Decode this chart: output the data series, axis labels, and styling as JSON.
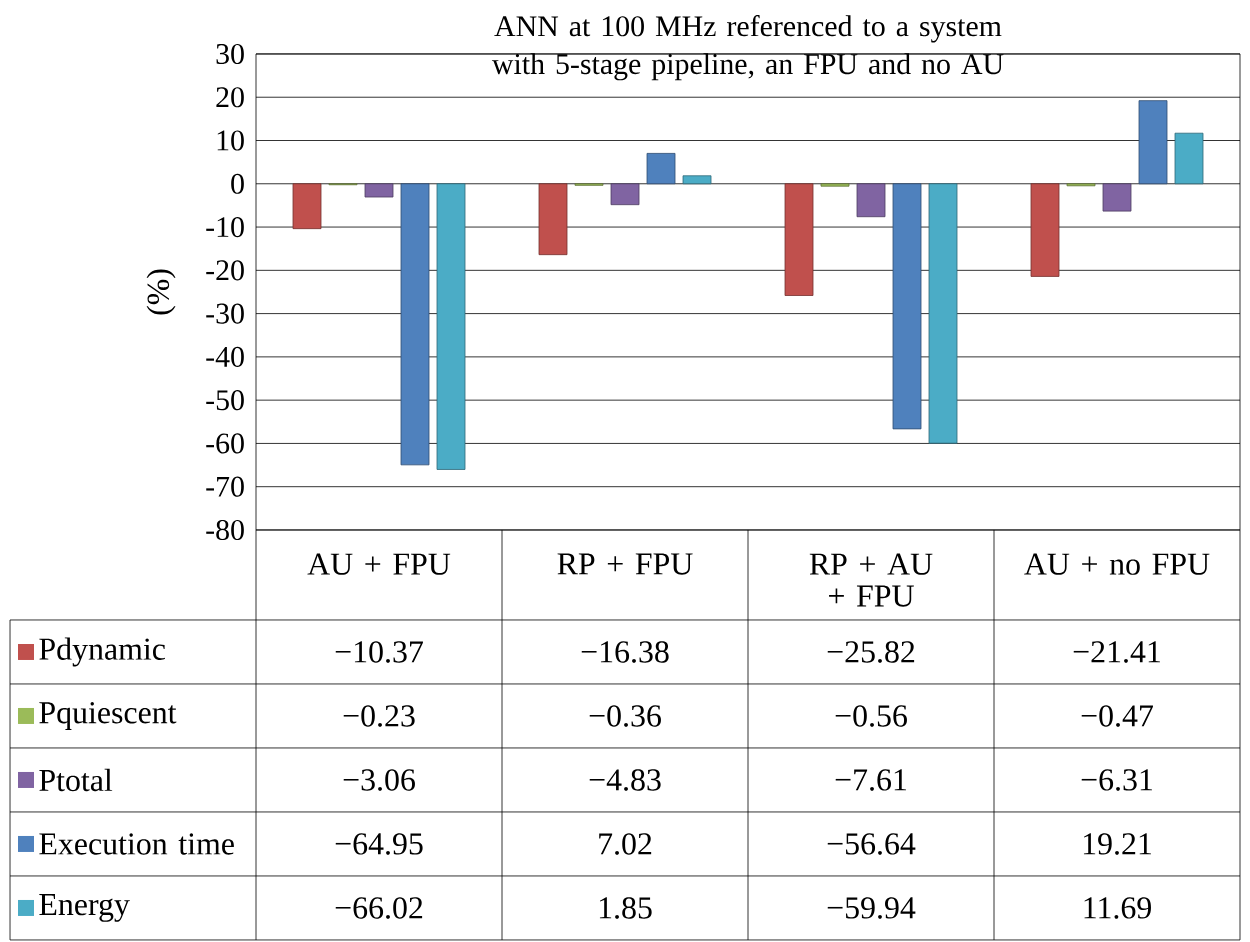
{
  "chart_data": {
    "type": "bar",
    "title": "ANN at 100 MHz referenced to a system with 5-stage pipeline, an FPU and no AU",
    "ylabel": "(%)",
    "categories": [
      "AU + FPU",
      "RP + FPU",
      "RP + AU + FPU",
      "AU + no FPU"
    ],
    "series": [
      {
        "name": "Pdynamic",
        "color": "#c0504d",
        "values": [
          -10.37,
          -16.38,
          -25.82,
          -21.41
        ]
      },
      {
        "name": "Pquiescent",
        "color": "#9bbb59",
        "values": [
          -0.23,
          -0.36,
          -0.56,
          -0.47
        ]
      },
      {
        "name": "Ptotal",
        "color": "#8064a2",
        "values": [
          -3.06,
          -4.83,
          -7.61,
          -6.31
        ]
      },
      {
        "name": "Execution time",
        "color": "#4f81bd",
        "values": [
          -64.95,
          7.02,
          -56.64,
          19.21
        ]
      },
      {
        "name": "Energy",
        "color": "#4bacc6",
        "values": [
          -66.02,
          1.85,
          -59.94,
          11.69
        ]
      }
    ],
    "ylim": [
      -80,
      30
    ],
    "yticks": [
      -80,
      -70,
      -60,
      -50,
      -40,
      -30,
      -20,
      -10,
      0,
      10,
      20,
      30
    ],
    "grid": "y",
    "legend": "bottom",
    "data_labels": true
  }
}
